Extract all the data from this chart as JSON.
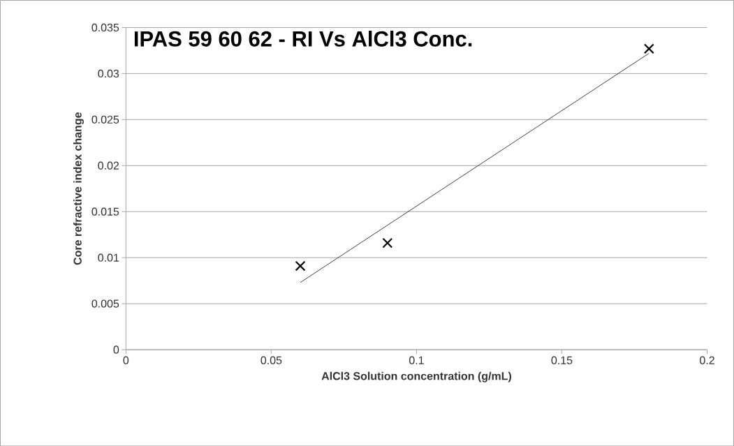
{
  "chart_data": {
    "type": "scatter",
    "title": "IPAS 59 60 62 - RI Vs AlCl3 Conc.",
    "xlabel": "AlCl3 Solution concentration (g/mL)",
    "ylabel": "Core refractive index change",
    "series": [
      {
        "color": "#000000",
        "marker": "cross",
        "x": [
          0.06,
          0.09,
          0.18
        ],
        "values": [
          0.0091,
          0.0116,
          0.0327
        ]
      },
      {
        "type": "line",
        "color": "#404040",
        "marker": "none",
        "x": [
          0.06,
          0.18
        ],
        "values": [
          0.0073,
          0.0322
        ]
      }
    ],
    "xlim": [
      0,
      0.2
    ],
    "xticks": [
      0,
      0.05,
      0.1,
      0.15,
      0.2
    ],
    "ylim": [
      0,
      0.035
    ],
    "yticks": [
      0,
      0.005,
      0.01,
      0.015,
      0.02,
      0.025,
      0.03,
      0.035
    ],
    "grid": "y"
  }
}
